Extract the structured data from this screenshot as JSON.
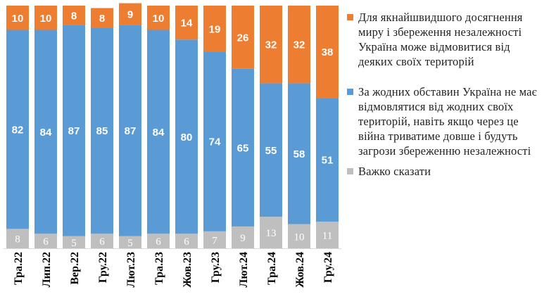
{
  "chart_data": {
    "type": "bar",
    "stacked": true,
    "categories": [
      "Тра.22",
      "Лип.22",
      "Вер.22",
      "Гру.22",
      "Лют.23",
      "Тра.23",
      "Жов.23",
      "Гру.23",
      "Лют.24",
      "Тра.24",
      "Жов.24",
      "Гру.24"
    ],
    "series": [
      {
        "name": "Важко сказати",
        "color": "#BFBFBF",
        "values": [
          8,
          6,
          5,
          6,
          5,
          6,
          6,
          7,
          9,
          13,
          10,
          11
        ]
      },
      {
        "name": "За жодних обставин Україна не має відмовлятися від жодних своїх територій, навіть якщо через це війна триватиме довше і будуть загрози збереженню незалежності",
        "color": "#5B9BD5",
        "values": [
          82,
          84,
          87,
          85,
          87,
          84,
          80,
          74,
          65,
          55,
          58,
          51
        ]
      },
      {
        "name": "Для якнайшвидшого досягнення миру і збереження незалежності Україна може відмовитися від деяких своїх територій",
        "color": "#ED7D31",
        "values": [
          10,
          10,
          8,
          8,
          9,
          10,
          14,
          19,
          26,
          32,
          32,
          38
        ]
      }
    ],
    "ylim": [
      0,
      100
    ],
    "grid": false,
    "legend_position": "right"
  },
  "legend": [
    {
      "label": "Для якнайшвидшого досягнення миру і збереження незалежності Україна може відмовитися від деяких своїх територій",
      "color": "#ED7D31"
    },
    {
      "label": "За жодних обставин Україна не має відмовлятися від жодних своїх територій, навіть якщо через це війна триватиме довше і будуть загрози збереженню незалежності",
      "color": "#5B9BD5"
    },
    {
      "label": "Важко сказати",
      "color": "#BFBFBF"
    }
  ]
}
